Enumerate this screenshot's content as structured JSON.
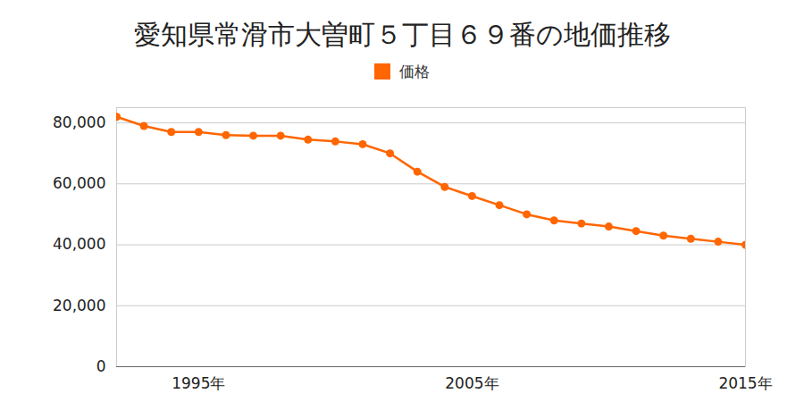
{
  "chart_data": {
    "type": "line",
    "title": "愛知県常滑市大曽町５丁目６９番の地価推移",
    "x": [
      1992,
      1993,
      1994,
      1995,
      1996,
      1997,
      1998,
      1999,
      2000,
      2001,
      2002,
      2003,
      2004,
      2005,
      2006,
      2007,
      2008,
      2009,
      2010,
      2011,
      2012,
      2013,
      2014,
      2015
    ],
    "series": [
      {
        "name": "価格",
        "color": "#ff6600",
        "marker": "circle",
        "values": [
          82000,
          79000,
          77000,
          77000,
          76000,
          75800,
          75800,
          74500,
          73900,
          73000,
          70000,
          64000,
          59000,
          56000,
          53000,
          50000,
          48000,
          47000,
          46000,
          44500,
          43000,
          42000,
          41000,
          40000
        ]
      }
    ],
    "xlim": [
      1992,
      2015
    ],
    "xticks": [
      {
        "value": 1995,
        "label": "1995年"
      },
      {
        "value": 2005,
        "label": "2005年"
      },
      {
        "value": 2015,
        "label": "2015年"
      }
    ],
    "ylim": [
      0,
      85000
    ],
    "yticks": [
      0,
      {
        "value": 20000,
        "label": "20,000"
      },
      {
        "value": 40000,
        "label": "40,000"
      },
      {
        "value": 60000,
        "label": "60,000"
      },
      {
        "value": 80000,
        "label": "80,000"
      }
    ],
    "grid": true,
    "legend": "top"
  }
}
